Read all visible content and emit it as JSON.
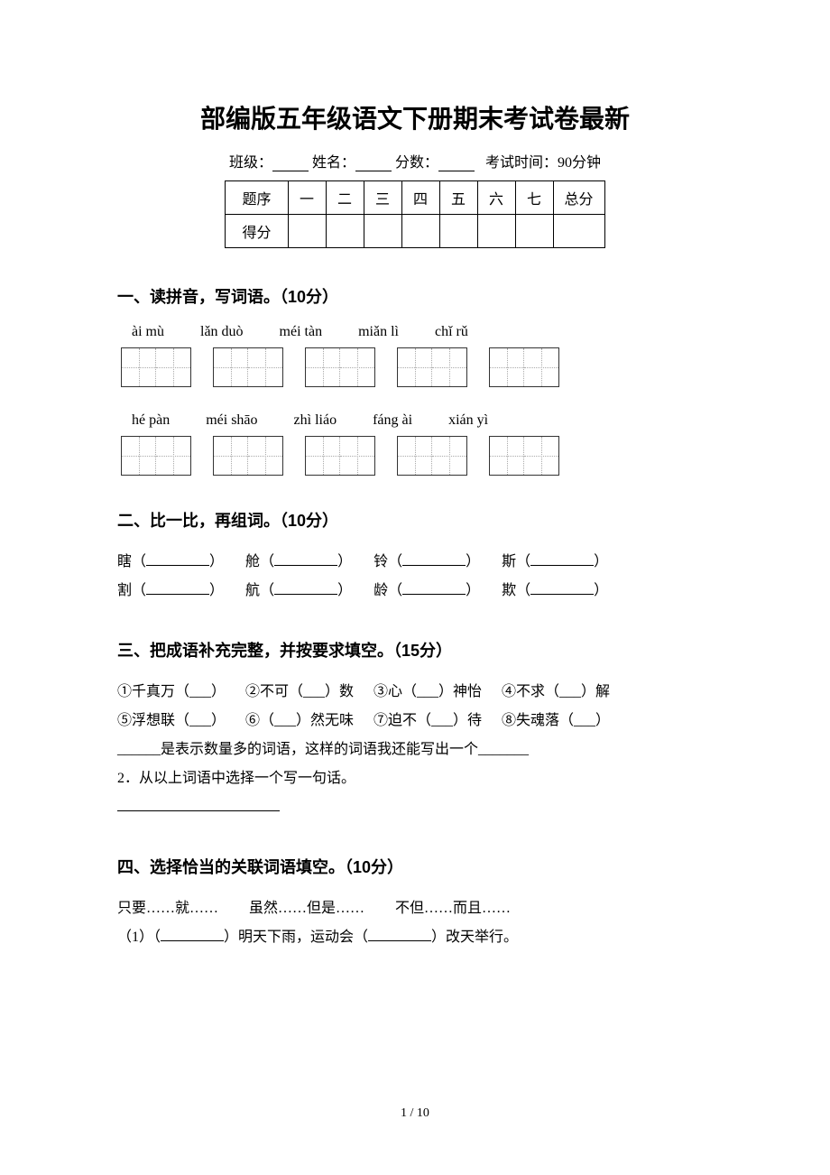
{
  "title": "部编版五年级语文下册期末考试卷最新",
  "info": {
    "class_label": "班级：",
    "name_label": "姓名：",
    "score_label": "分数：",
    "exam_time_label": "考试时间：90分钟"
  },
  "score_table": {
    "seq_label": "题序",
    "score_label": "得分",
    "cols": [
      "一",
      "二",
      "三",
      "四",
      "五",
      "六",
      "七",
      "总分"
    ]
  },
  "sections": {
    "s1": {
      "title": "一、读拼音，写词语。（10分）",
      "row1_pinyin": [
        "ài mù",
        "lǎn duò",
        "méi tàn",
        "miǎn lì",
        "chǐ rǔ"
      ],
      "row2_pinyin": [
        "hé pàn",
        "méi shāo",
        "zhì liáo",
        "fáng ài",
        "xián yì"
      ],
      "grid_cells": 2
    },
    "s2": {
      "title": "二、比一比，再组词。（10分）",
      "pairs": [
        {
          "a": "瞎",
          "b": "割"
        },
        {
          "a": "舱",
          "b": "航"
        },
        {
          "a": "铃",
          "b": "龄"
        },
        {
          "a": "斯",
          "b": "欺"
        }
      ]
    },
    "s3": {
      "title": "三、把成语补充完整，并按要求填空。（15分）",
      "idioms": [
        "①千真万（___）",
        "②不可（___）数",
        "③心（___）神怡",
        "④不求（___）解",
        "⑤浮想联（___）",
        "⑥（___）然无味",
        "⑦迫不（___）待",
        "⑧失魂落（___）"
      ],
      "line1_a": "______是表示数量多的词语，这样的词语我还能写出一个_______",
      "line2": "2．从以上词语中选择一个写一句话。"
    },
    "s4": {
      "title": "四、选择恰当的关联词语填空。（10分）",
      "options": [
        "只要……就……",
        "虽然……但是……",
        "不但……而且……"
      ],
      "q1_a": "（1）（",
      "q1_b": "）明天下雨，运动会（",
      "q1_c": "）改天举行。"
    }
  },
  "page_num": "1 / 10"
}
